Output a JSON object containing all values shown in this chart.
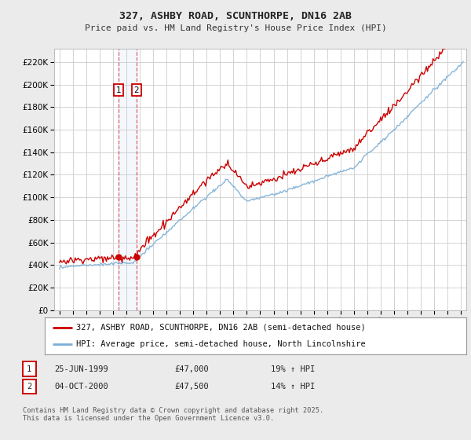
{
  "title1": "327, ASHBY ROAD, SCUNTHORPE, DN16 2AB",
  "title2": "Price paid vs. HM Land Registry's House Price Index (HPI)",
  "legend1": "327, ASHBY ROAD, SCUNTHORPE, DN16 2AB (semi-detached house)",
  "legend2": "HPI: Average price, semi-detached house, North Lincolnshire",
  "footer": "Contains HM Land Registry data © Crown copyright and database right 2025.\nThis data is licensed under the Open Government Licence v3.0.",
  "transaction1_date": "25-JUN-1999",
  "transaction1_price": "£47,000",
  "transaction1_hpi": "19% ↑ HPI",
  "transaction2_date": "04-OCT-2000",
  "transaction2_price": "£47,500",
  "transaction2_hpi": "14% ↑ HPI",
  "sale_color": "#cc0000",
  "hpi_color": "#7aaed6",
  "vline_color": "#cc0000",
  "yticks": [
    0,
    20000,
    40000,
    60000,
    80000,
    100000,
    120000,
    140000,
    160000,
    180000,
    200000,
    220000
  ],
  "background_color": "#ebebeb",
  "plot_bg": "#ffffff",
  "grid_color": "#cccccc",
  "t1_year": 1999.458,
  "t2_year": 2000.75,
  "t1_price": 47000,
  "t2_price": 47500
}
